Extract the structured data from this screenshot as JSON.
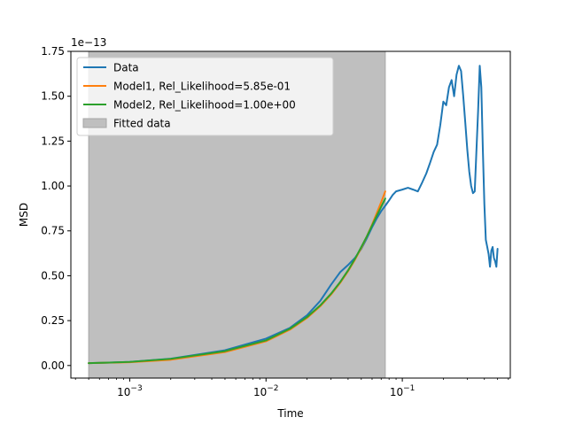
{
  "chart_data": {
    "type": "line",
    "title": "",
    "xlabel": "Time",
    "ylabel": "MSD",
    "y_offset_label": "1e−13",
    "xscale": "log",
    "xlim": [
      0.00037,
      0.62
    ],
    "ylim": [
      -0.07,
      1.75
    ],
    "y_ticks": [
      0.0,
      0.25,
      0.5,
      0.75,
      1.0,
      1.25,
      1.5,
      1.75
    ],
    "y_tick_labels": [
      "0.00",
      "0.25",
      "0.50",
      "0.75",
      "1.00",
      "1.25",
      "1.50",
      "1.75"
    ],
    "x_ticks": [
      0.001,
      0.01,
      0.1
    ],
    "x_tick_labels": [
      {
        "base": "10",
        "exp": "−3"
      },
      {
        "base": "10",
        "exp": "−2"
      },
      {
        "base": "10",
        "exp": "−1"
      }
    ],
    "grid": false,
    "legend_position": "upper-left",
    "fitted_region": {
      "x_start": 0.0005,
      "x_end": 0.075,
      "label": "Fitted data",
      "color": "#bfbfbf"
    },
    "series": [
      {
        "name": "Data",
        "color": "#1f77b4",
        "x": [
          0.0005,
          0.001,
          0.002,
          0.005,
          0.01,
          0.015,
          0.02,
          0.025,
          0.03,
          0.035,
          0.04,
          0.045,
          0.05,
          0.055,
          0.06,
          0.065,
          0.07,
          0.075,
          0.08,
          0.085,
          0.09,
          0.1,
          0.11,
          0.12,
          0.13,
          0.14,
          0.15,
          0.16,
          0.17,
          0.18,
          0.19,
          0.2,
          0.21,
          0.22,
          0.23,
          0.24,
          0.25,
          0.26,
          0.27,
          0.28,
          0.29,
          0.3,
          0.31,
          0.32,
          0.33,
          0.34,
          0.35,
          0.36,
          0.37,
          0.38,
          0.39,
          0.4,
          0.41,
          0.42,
          0.43,
          0.44,
          0.45,
          0.46,
          0.47,
          0.48,
          0.49,
          0.5
        ],
        "y": [
          0.013,
          0.02,
          0.038,
          0.085,
          0.15,
          0.21,
          0.28,
          0.36,
          0.45,
          0.52,
          0.56,
          0.6,
          0.65,
          0.71,
          0.77,
          0.82,
          0.86,
          0.89,
          0.92,
          0.95,
          0.97,
          0.98,
          0.99,
          0.98,
          0.97,
          1.02,
          1.07,
          1.13,
          1.19,
          1.23,
          1.34,
          1.47,
          1.45,
          1.55,
          1.59,
          1.5,
          1.62,
          1.67,
          1.64,
          1.5,
          1.35,
          1.2,
          1.08,
          1.0,
          0.96,
          0.97,
          1.2,
          1.42,
          1.67,
          1.55,
          1.2,
          0.9,
          0.7,
          0.66,
          0.62,
          0.55,
          0.64,
          0.66,
          0.6,
          0.58,
          0.55,
          0.65
        ]
      },
      {
        "name": "Model1, Rel_Likelihood=5.85e-01",
        "color": "#ff7f0e",
        "x": [
          0.0005,
          0.001,
          0.002,
          0.005,
          0.01,
          0.015,
          0.02,
          0.025,
          0.03,
          0.035,
          0.04,
          0.045,
          0.05,
          0.055,
          0.06,
          0.065,
          0.07,
          0.075
        ],
        "y": [
          0.013,
          0.018,
          0.032,
          0.075,
          0.135,
          0.2,
          0.265,
          0.33,
          0.395,
          0.46,
          0.525,
          0.59,
          0.655,
          0.72,
          0.785,
          0.85,
          0.91,
          0.97
        ]
      },
      {
        "name": "Model2, Rel_Likelihood=1.00e+00",
        "color": "#2ca02c",
        "x": [
          0.0005,
          0.001,
          0.002,
          0.005,
          0.01,
          0.015,
          0.02,
          0.025,
          0.03,
          0.035,
          0.04,
          0.045,
          0.05,
          0.055,
          0.06,
          0.065,
          0.07,
          0.075
        ],
        "y": [
          0.013,
          0.02,
          0.037,
          0.08,
          0.14,
          0.205,
          0.27,
          0.335,
          0.4,
          0.465,
          0.53,
          0.595,
          0.66,
          0.72,
          0.78,
          0.835,
          0.885,
          0.93
        ]
      }
    ]
  }
}
